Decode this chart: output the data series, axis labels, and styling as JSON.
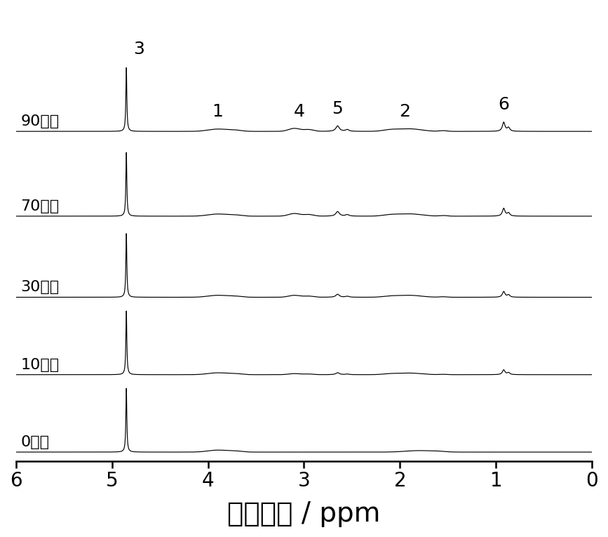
{
  "xlabel": "化学位移 / ppm",
  "xlim_left": 6.0,
  "xlim_right": 0.0,
  "xticks": [
    6,
    5,
    4,
    3,
    2,
    1,
    0
  ],
  "xlabel_fontsize": 28,
  "tick_fontsize": 20,
  "label_fontsize": 16,
  "annot_fontsize": 18,
  "spectra_labels": [
    "0小时",
    "10小时",
    "30小时",
    "70小时",
    "90小时"
  ],
  "offsets": [
    0.0,
    1.05,
    2.1,
    3.2,
    4.35
  ],
  "line_color": "#000000",
  "bg_color": "#ffffff"
}
